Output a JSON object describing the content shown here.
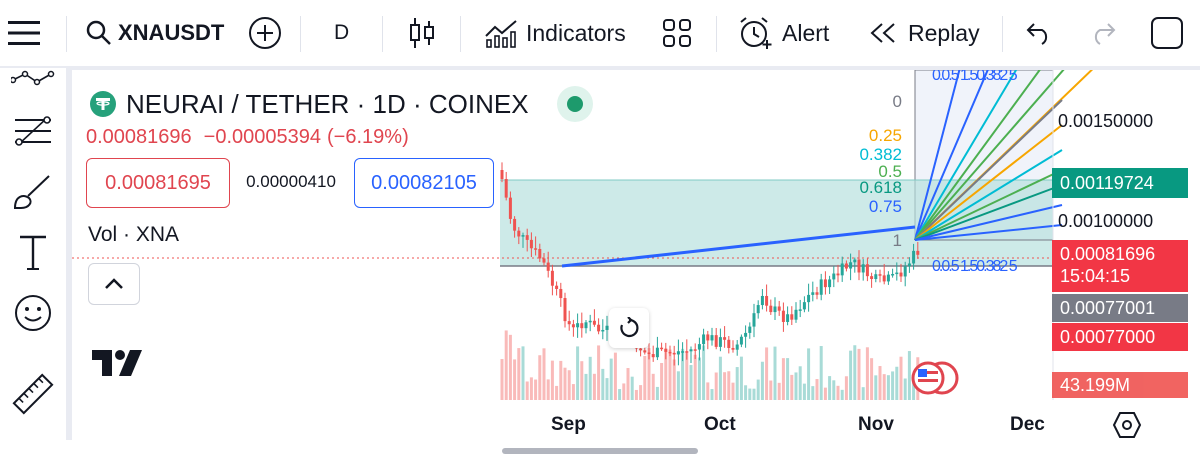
{
  "toolbar": {
    "symbol": "XNAUSDT",
    "interval": "D",
    "indicators_label": "Indicators",
    "alert_label": "Alert",
    "replay_label": "Replay"
  },
  "legend": {
    "title": "NEURAI / TETHER · 1D · COINEX",
    "last_price": "0.00081696",
    "change": "−0.00005394",
    "change_pct": "(−6.19%)",
    "bid": "0.00081695",
    "spread": "0.00000410",
    "ask": "0.00082105",
    "volume_label": "Vol · XNA"
  },
  "fib_levels": [
    "0",
    "0.25",
    "0.382",
    "0.5",
    "0.618",
    "0.75",
    "1"
  ],
  "fib_labels_truncated": {
    "top": "0.0.5 1.50.382 5",
    "bottom": "0.0.5 1.50.382 5"
  },
  "price_axis": {
    "labels": [
      "0.00150000",
      "0.00100000"
    ],
    "highlight_green": "0.00119724",
    "current_price": "0.00081696",
    "countdown": "15:04:15",
    "gray_tag": "0.00077001",
    "red_tag": "0.00077000",
    "volume_tag": "43.199M"
  },
  "time_axis": [
    "Sep",
    "Oct",
    "Nov",
    "Dec"
  ],
  "colors": {
    "up": "#26a69a",
    "down": "#ef5350",
    "fib_fill": "#b2dfdb",
    "trend_line": "#2962ff",
    "green_tag": "#089981",
    "red_tag": "#f23645",
    "gray_tag": "#787b86"
  }
}
